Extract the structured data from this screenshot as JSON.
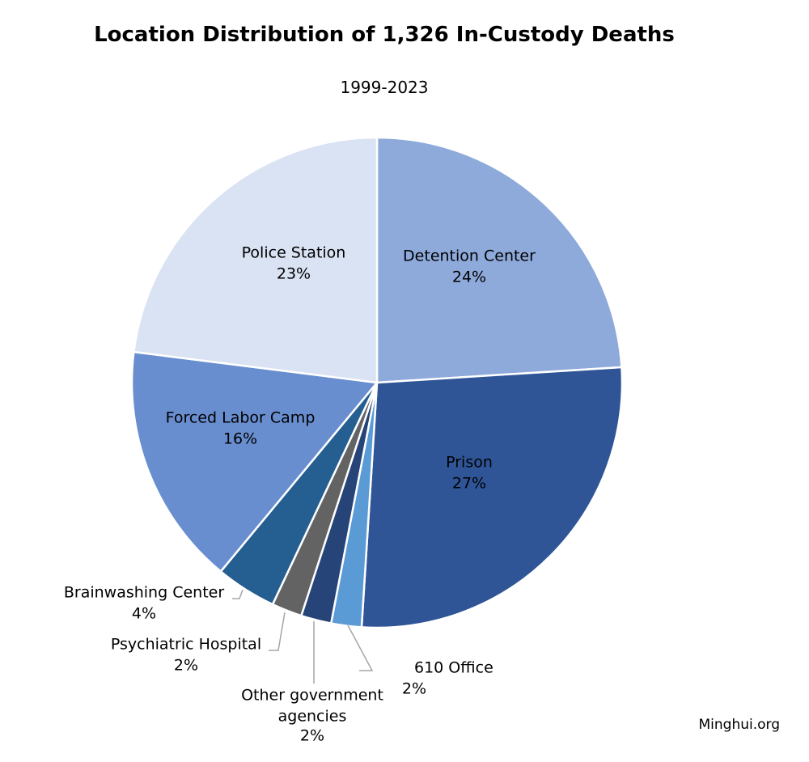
{
  "chart_data": {
    "type": "pie",
    "title": "Location Distribution of 1,326 In-Custody Deaths",
    "subtitle": "1999-2023",
    "slices": [
      {
        "label": "Detention Center",
        "value": 24,
        "pct_label": "24%",
        "color": "#8eaadb"
      },
      {
        "label": "Prison",
        "value": 27,
        "pct_label": "27%",
        "color": "#2f5597"
      },
      {
        "label": "610 Office",
        "value": 2,
        "pct_label": "2%",
        "color": "#5b9bd5"
      },
      {
        "label": "Other government agencies",
        "value": 2,
        "pct_label": "2%",
        "color": "#264478"
      },
      {
        "label": "Psychiatric Hospital",
        "value": 2,
        "pct_label": "2%",
        "color": "#636363"
      },
      {
        "label": "Brainwashing Center",
        "value": 4,
        "pct_label": "4%",
        "color": "#255e91"
      },
      {
        "label": "Forced Labor Camp",
        "value": 16,
        "pct_label": "16%",
        "color": "#698ed0"
      },
      {
        "label": "Police Station",
        "value": 23,
        "pct_label": "23%",
        "color": "#dae3f3"
      }
    ]
  },
  "source": "Minghui.org"
}
